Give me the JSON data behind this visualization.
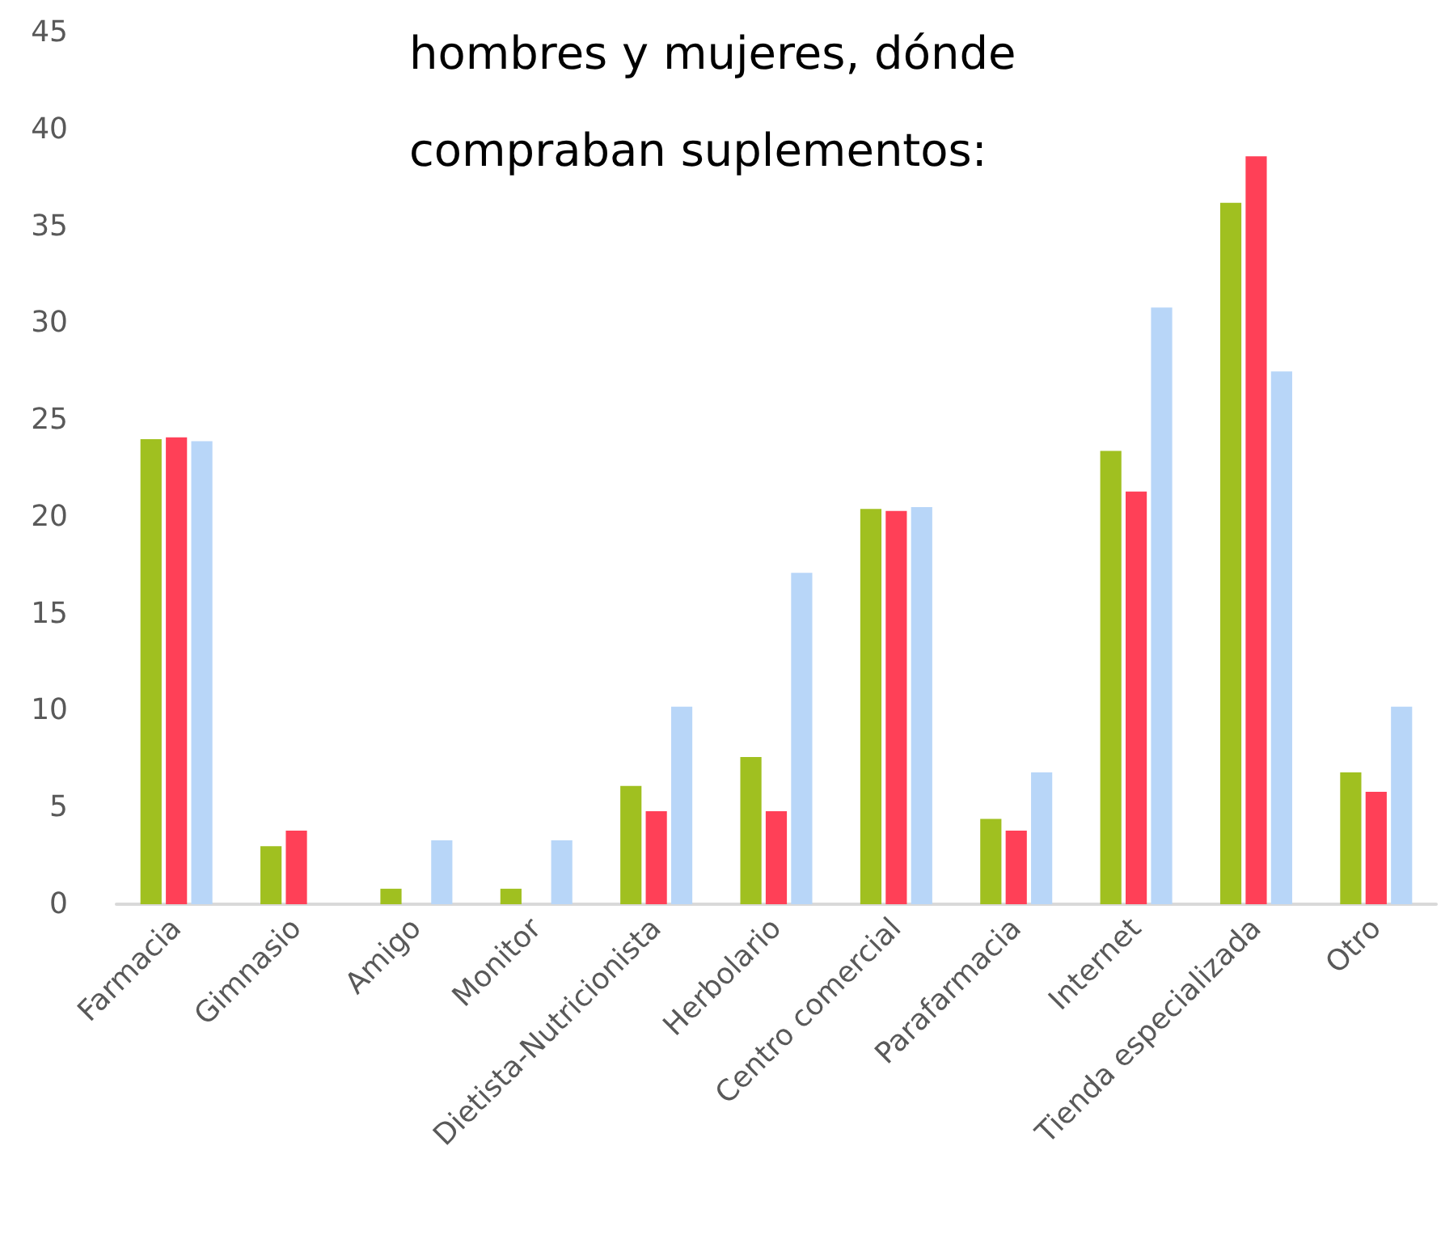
{
  "chart_data": {
    "type": "bar",
    "title": "hombres y mujeres, dónde compraban suplementos:",
    "categories": [
      "Farmacia",
      "Gimnasio",
      "Amigo",
      "Monitor",
      "Dietista-Nutricionista",
      "Herbolario",
      "Centro comercial",
      "Parafarmacia",
      "Internet",
      "Tienda especializada",
      "Otro"
    ],
    "series": [
      {
        "color": "#a0c020",
        "values": [
          24.0,
          3.0,
          0.8,
          0.8,
          6.1,
          7.6,
          20.4,
          4.4,
          23.4,
          36.2,
          6.8
        ]
      },
      {
        "color": "#ff4057",
        "values": [
          24.1,
          3.8,
          0,
          0,
          4.8,
          4.8,
          20.3,
          3.8,
          21.3,
          38.6,
          5.8
        ]
      },
      {
        "color": "#b8d6f8",
        "values": [
          23.9,
          0,
          3.3,
          3.3,
          10.2,
          17.1,
          20.5,
          6.8,
          30.8,
          27.5,
          10.2
        ]
      }
    ],
    "ylim": [
      0,
      45
    ],
    "yticks": [
      0,
      5,
      10,
      15,
      20,
      25,
      30,
      35,
      40,
      45
    ]
  }
}
